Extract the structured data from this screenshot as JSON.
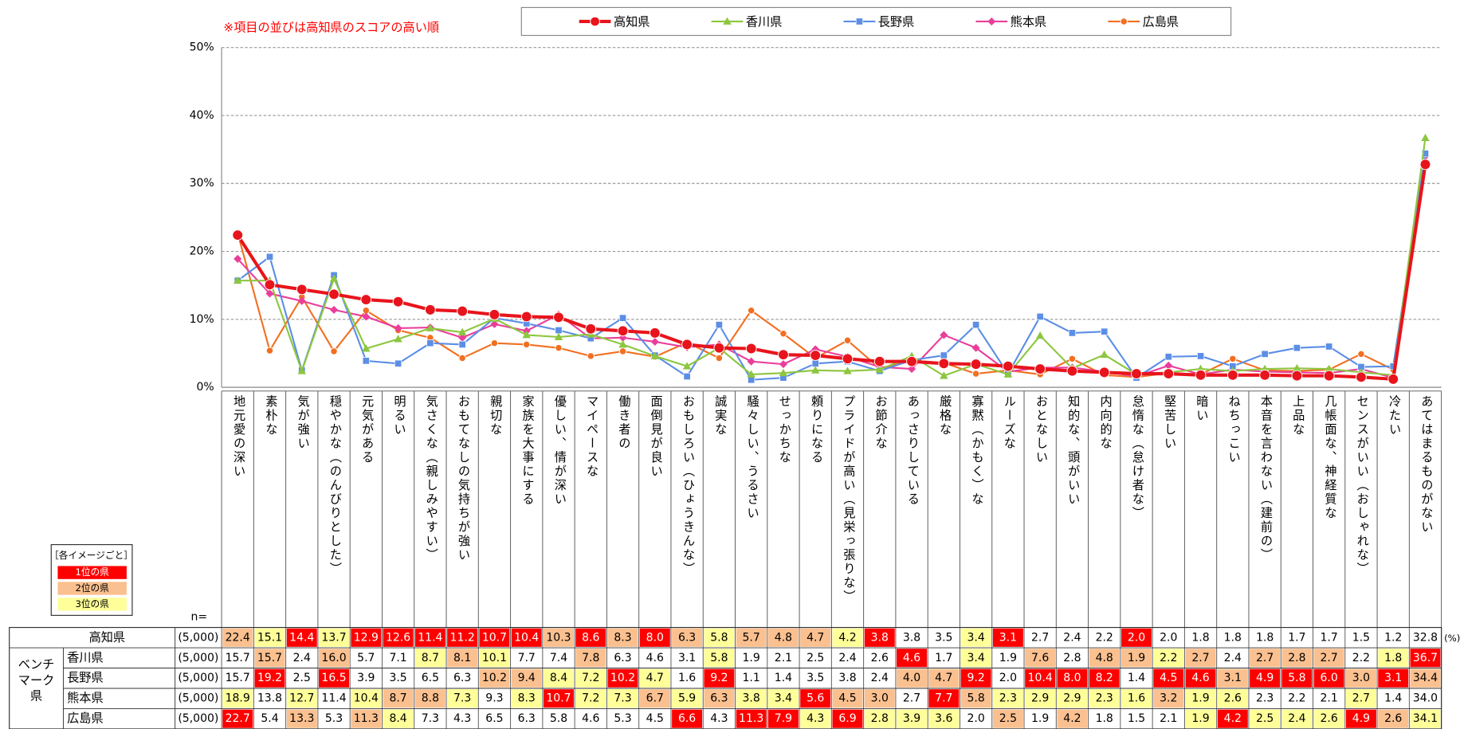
{
  "chart_data": {
    "type": "line",
    "note": "※項目の並びは高知県のスコアの高い順",
    "categories": [
      "地元愛の深い",
      "素朴な",
      "気が強い",
      "穏やかな（のんびりとした）",
      "元気がある",
      "明るい",
      "気さくな（親しみやすい）",
      "おもてなしの気持ちが強い",
      "親切な",
      "家族を大事にする",
      "優しい、情が深い",
      "マイペースな",
      "働き者の",
      "面倒見が良い",
      "おもしろい（ひょうきんな）",
      "誠実な",
      "騒々しい、うるさい",
      "せっかちな",
      "頼りになる",
      "プライドが高い（見栄っ張りな）",
      "お節介な",
      "あっさりしている",
      "厳格な",
      "寡黙（かもく）な",
      "ルーズな",
      "おとなしい",
      "知的な、頭がいい",
      "内向的な",
      "怠惰な（怠け者な）",
      "堅苦しい",
      "暗い",
      "ねちっこい",
      "本音を言わない（建前の）",
      "上品な",
      "几帳面な、神経質な",
      "センスがいい（おしゃれな）",
      "冷たい",
      "あてはまるものがない"
    ],
    "series": [
      {
        "name": "高知県",
        "color": "#e8141c",
        "marker": "circle",
        "n": "(5,000)",
        "values": [
          22.4,
          15.1,
          14.4,
          13.7,
          12.9,
          12.6,
          11.4,
          11.2,
          10.7,
          10.4,
          10.3,
          8.6,
          8.3,
          8.0,
          6.3,
          5.8,
          5.7,
          4.8,
          4.7,
          4.2,
          3.8,
          3.8,
          3.5,
          3.4,
          3.1,
          2.7,
          2.4,
          2.2,
          2.0,
          2.0,
          1.8,
          1.8,
          1.8,
          1.7,
          1.7,
          1.5,
          1.2,
          32.8
        ],
        "value_labels": [
          "22.4",
          "15.1",
          "14.4",
          "13.7",
          "12.9",
          "12.6",
          "11.4",
          "11.2",
          "10.7",
          "10.4",
          "10.3",
          "8.6",
          "8.3",
          "8.0",
          "6.3",
          "5.8",
          "5.7",
          "4.8",
          "4.7",
          "4.2",
          "3.8",
          "3.8",
          "3.5",
          "3.4",
          "3.1",
          "2.7",
          "2.4",
          "2.2",
          "2.0",
          "2.0",
          "1.8",
          "1.8",
          "1.8",
          "1.7",
          "1.7",
          "1.5",
          "1.2",
          "32.8"
        ]
      },
      {
        "name": "香川県",
        "color": "#8dc63f",
        "marker": "triangle",
        "n": "(5,000)",
        "values": [
          15.7,
          15.7,
          2.4,
          16.0,
          5.7,
          7.1,
          8.7,
          8.1,
          10.1,
          7.7,
          7.4,
          7.8,
          6.3,
          4.6,
          3.1,
          5.8,
          1.9,
          2.1,
          2.5,
          2.4,
          2.6,
          4.6,
          1.7,
          3.4,
          1.9,
          7.6,
          2.8,
          4.8,
          1.9,
          2.2,
          2.7,
          2.4,
          2.7,
          2.8,
          2.7,
          2.2,
          1.8,
          36.7
        ],
        "value_labels": [
          "15.7",
          "15.7",
          "2.4",
          "16.0",
          "5.7",
          "7.1",
          "8.7",
          "8.1",
          "10.1",
          "7.7",
          "7.4",
          "7.8",
          "6.3",
          "4.6",
          "3.1",
          "5.8",
          "1.9",
          "2.1",
          "2.5",
          "2.4",
          "2.6",
          "4.6",
          "1.7",
          "3.4",
          "1.9",
          "7.6",
          "2.8",
          "4.8",
          "1.9",
          "2.2",
          "2.7",
          "2.4",
          "2.7",
          "2.8",
          "2.7",
          "2.2",
          "1.8",
          "36.7"
        ]
      },
      {
        "name": "長野県",
        "color": "#5b8ee6",
        "marker": "square",
        "n": "(5,000)",
        "values": [
          15.7,
          19.2,
          2.5,
          16.5,
          3.9,
          3.5,
          6.5,
          6.3,
          10.2,
          9.4,
          8.4,
          7.2,
          10.2,
          4.7,
          1.6,
          9.2,
          1.1,
          1.4,
          3.5,
          3.8,
          2.4,
          4.0,
          4.7,
          9.2,
          2.0,
          10.4,
          8.0,
          8.2,
          1.4,
          4.5,
          4.6,
          3.1,
          4.9,
          5.8,
          6.0,
          3.0,
          3.1,
          34.4
        ],
        "value_labels": [
          "15.7",
          "19.2",
          "2.5",
          "16.5",
          "3.9",
          "3.5",
          "6.5",
          "6.3",
          "10.2",
          "9.4",
          "8.4",
          "7.2",
          "10.2",
          "4.7",
          "1.6",
          "9.2",
          "1.1",
          "1.4",
          "3.5",
          "3.8",
          "2.4",
          "4.0",
          "4.7",
          "9.2",
          "2.0",
          "10.4",
          "8.0",
          "8.2",
          "1.4",
          "4.5",
          "4.6",
          "3.1",
          "4.9",
          "5.8",
          "6.0",
          "3.0",
          "3.1",
          "34.4"
        ]
      },
      {
        "name": "熊本県",
        "color": "#ea3e9a",
        "marker": "diamond",
        "n": "(5,000)",
        "values": [
          18.9,
          13.8,
          12.7,
          11.4,
          10.4,
          8.7,
          8.8,
          7.3,
          9.3,
          8.3,
          10.7,
          7.2,
          7.3,
          6.7,
          5.9,
          6.3,
          3.8,
          3.4,
          5.6,
          4.5,
          3.0,
          2.7,
          7.7,
          5.8,
          2.3,
          2.9,
          2.9,
          2.3,
          1.6,
          3.2,
          1.9,
          2.6,
          2.3,
          2.2,
          2.1,
          2.7,
          1.4,
          34.0
        ],
        "value_labels": [
          "18.9",
          "13.8",
          "12.7",
          "11.4",
          "10.4",
          "8.7",
          "8.8",
          "7.3",
          "9.3",
          "8.3",
          "10.7",
          "7.2",
          "7.3",
          "6.7",
          "5.9",
          "6.3",
          "3.8",
          "3.4",
          "5.6",
          "4.5",
          "3.0",
          "2.7",
          "7.7",
          "5.8",
          "2.3",
          "2.9",
          "2.9",
          "2.3",
          "1.6",
          "3.2",
          "1.9",
          "2.6",
          "2.3",
          "2.2",
          "2.1",
          "2.7",
          "1.4",
          "34.0"
        ]
      },
      {
        "name": "広島県",
        "color": "#f26f21",
        "marker": "circle",
        "n": "(5,000)",
        "values": [
          22.7,
          5.4,
          13.3,
          5.3,
          11.3,
          8.4,
          7.3,
          4.3,
          6.5,
          6.3,
          5.8,
          4.6,
          5.3,
          4.5,
          6.6,
          4.3,
          11.3,
          7.9,
          4.3,
          6.9,
          2.8,
          3.9,
          3.6,
          2.0,
          2.5,
          1.9,
          4.2,
          1.8,
          1.5,
          2.1,
          1.9,
          4.2,
          2.5,
          2.4,
          2.6,
          4.9,
          2.6,
          34.1
        ],
        "value_labels": [
          "22.7",
          "5.4",
          "13.3",
          "5.3",
          "11.3",
          "8.4",
          "7.3",
          "4.3",
          "6.5",
          "6.3",
          "5.8",
          "4.6",
          "5.3",
          "4.5",
          "6.6",
          "4.3",
          "11.3",
          "7.9",
          "4.3",
          "6.9",
          "2.8",
          "3.9",
          "3.6",
          "2.0",
          "2.5",
          "1.9",
          "4.2",
          "1.8",
          "1.5",
          "2.1",
          "1.9",
          "4.2",
          "2.5",
          "2.4",
          "2.6",
          "4.9",
          "2.6",
          "34.1"
        ]
      }
    ],
    "ylim": [
      0,
      50
    ],
    "yticks": [
      {
        "value": 0,
        "label": "0%"
      },
      {
        "value": 10,
        "label": "10%"
      },
      {
        "value": 20,
        "label": "20%"
      },
      {
        "value": 30,
        "label": "30%"
      },
      {
        "value": 40,
        "label": "40%"
      },
      {
        "value": 50,
        "label": "50%"
      }
    ],
    "grid": true,
    "legend": "top",
    "table": {
      "n_header": "n=",
      "unit": "(%)",
      "group_label": "ベンチマーク県"
    },
    "rank_legend": {
      "title": "［各イメージごと］",
      "items": [
        "1位の県",
        "2位の県",
        "3位の県"
      ],
      "colors": [
        "#ff0000",
        "#fbc08f",
        "#ffff99"
      ]
    }
  }
}
